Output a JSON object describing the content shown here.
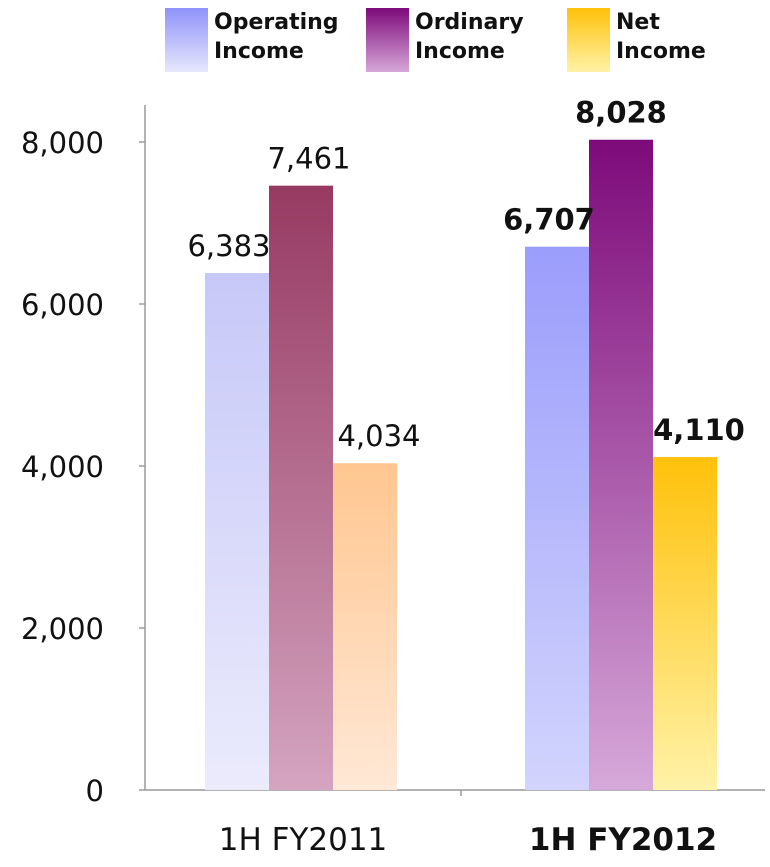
{
  "chart_data": {
    "type": "bar",
    "categories": [
      "1H FY2011",
      "1H FY2012"
    ],
    "category_bold": [
      false,
      true
    ],
    "series": [
      {
        "name": "Operating Income",
        "legend_lines": [
          "Operating",
          "Income"
        ],
        "values": [
          6383,
          6707
        ],
        "labels": [
          "6,383",
          "6,707"
        ]
      },
      {
        "name": "Ordinary Income",
        "legend_lines": [
          "Ordinary",
          "Income"
        ],
        "values": [
          7461,
          8028
        ],
        "labels": [
          "7,461",
          "8,028"
        ]
      },
      {
        "name": "Net Income",
        "legend_lines": [
          "Net",
          "Income"
        ],
        "values": [
          4034,
          4110
        ],
        "labels": [
          "4,034",
          "4,110"
        ]
      }
    ],
    "ylim": [
      0,
      8000
    ],
    "yticks": [
      0,
      2000,
      4000,
      6000,
      8000
    ],
    "ytick_labels": [
      "0",
      "2,000",
      "4,000",
      "6,000",
      "8,000"
    ],
    "grid": false,
    "legend_position": "top",
    "colors": {
      "fy2011": [
        {
          "top": "#c7c8f8",
          "bottom": "#ebebfc"
        },
        {
          "top": "#973a62",
          "bottom": "#d4a4c0"
        },
        {
          "top": "#ffc690",
          "bottom": "#ffe8d6"
        }
      ],
      "fy2012": [
        {
          "top": "#9b9dfb",
          "bottom": "#d2d4fd"
        },
        {
          "top": "#7d0a7a",
          "bottom": "#d6a8d9"
        },
        {
          "top": "#ffc10a",
          "bottom": "#fff2a8"
        }
      ],
      "legend": [
        {
          "top": "#8f92f9",
          "bottom": "#e7e8fd"
        },
        {
          "top": "#7d0a7a",
          "bottom": "#d6a8d9"
        },
        {
          "top": "#ffc10a",
          "bottom": "#fff2a8"
        }
      ]
    }
  }
}
